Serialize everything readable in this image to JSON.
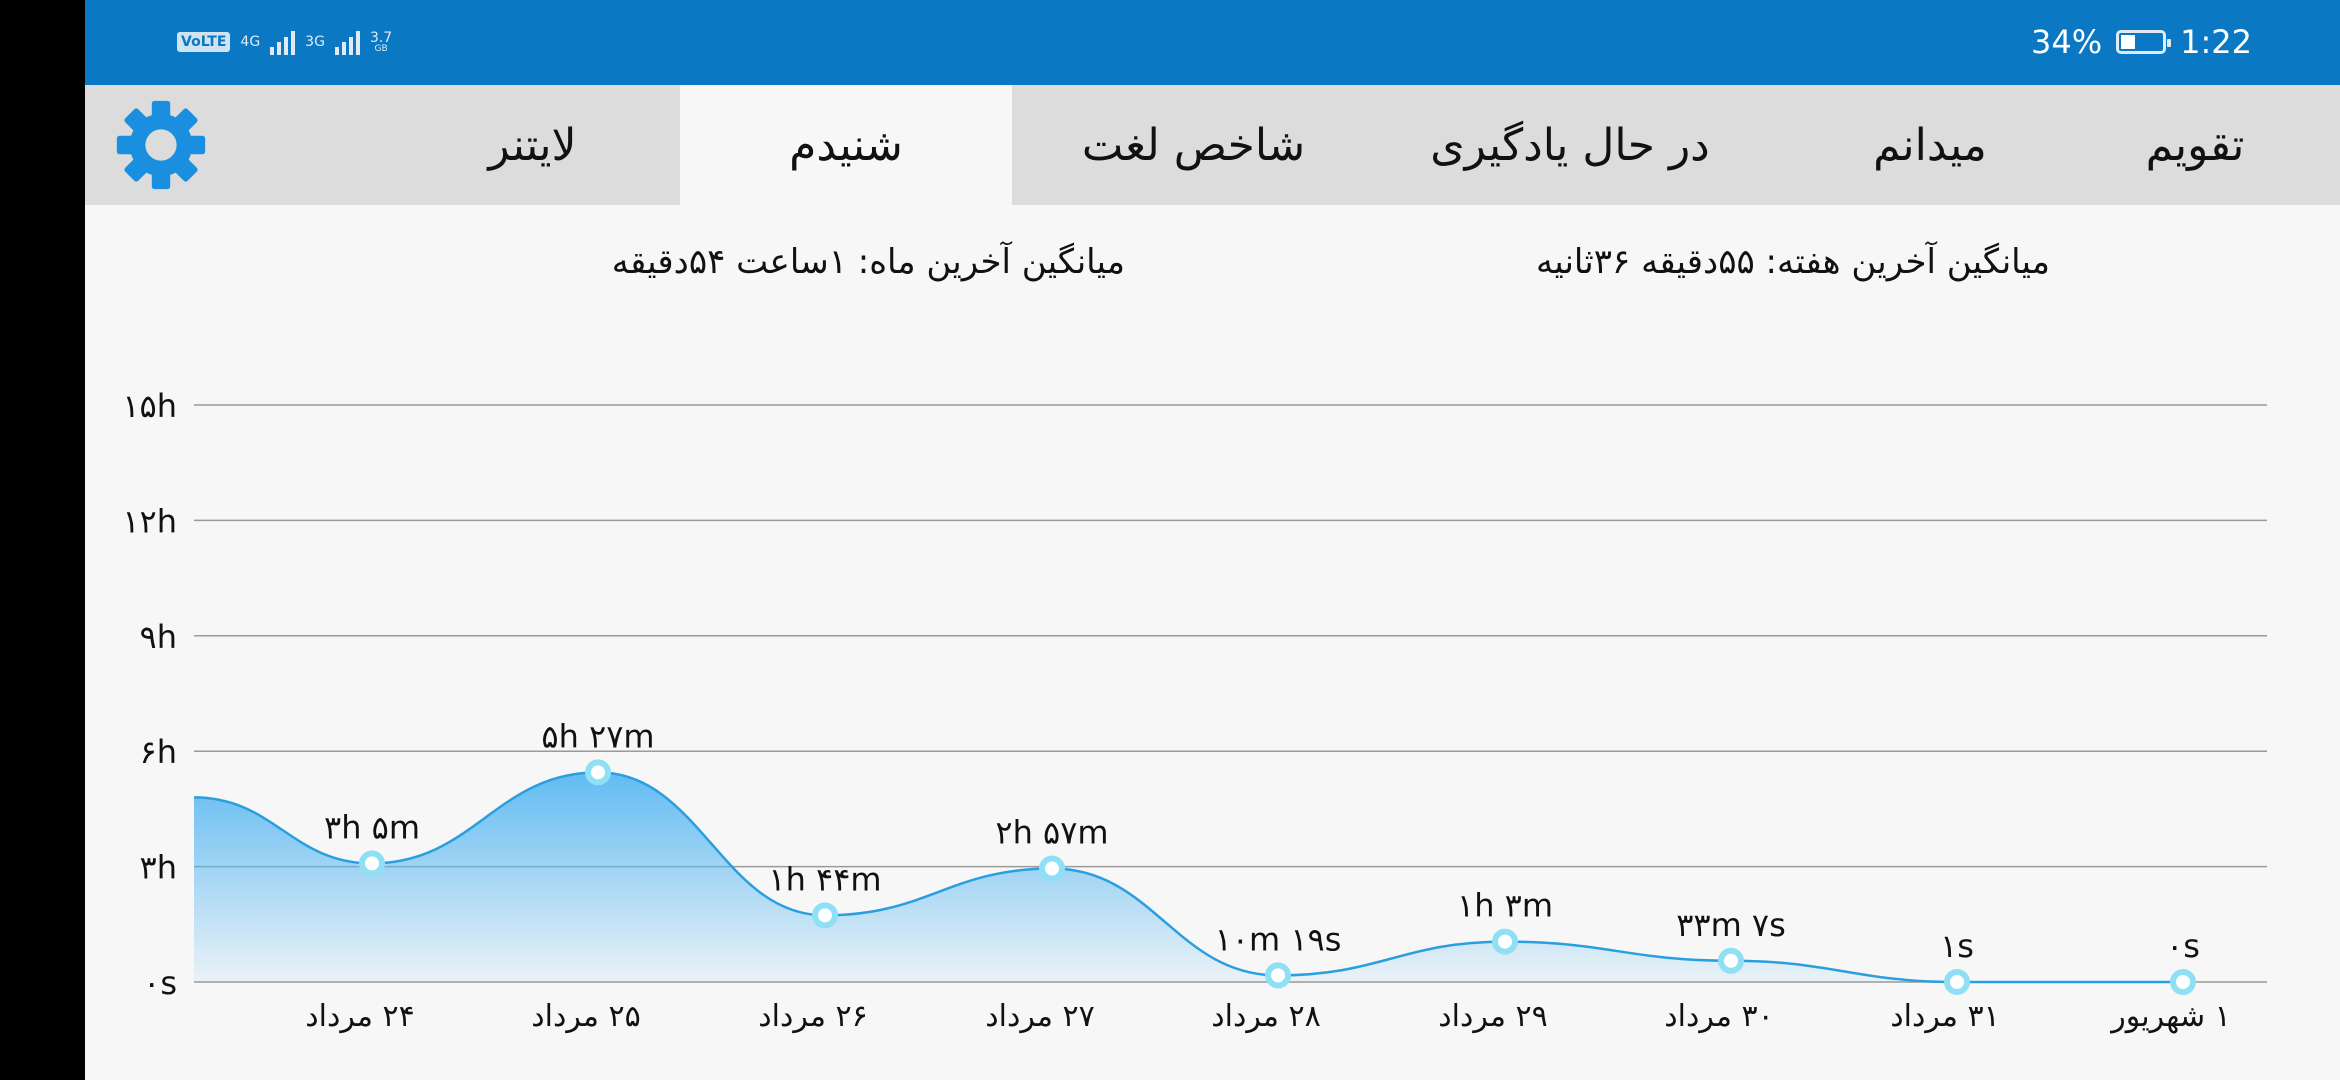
{
  "status_bar": {
    "network_badge": "VoLTE",
    "sim1_network": "4G",
    "sim2_network": "3G",
    "speed_value": "3.7",
    "speed_unit": "GB",
    "battery_percent": "34%",
    "battery_level": 0.34,
    "time": "1:22"
  },
  "tabs": [
    {
      "label": "تقویم",
      "active": false
    },
    {
      "label": "میدانم",
      "active": false
    },
    {
      "label": "در حال یادگیری",
      "active": false
    },
    {
      "label": "شاخص لغت",
      "active": false
    },
    {
      "label": "شنیدم",
      "active": true
    },
    {
      "label": "لایتنر",
      "active": false
    }
  ],
  "settings_icon": "gear-icon",
  "accent_color": "#0a78c2",
  "summary": {
    "week": "میانگین آخرین هفته: ۵۵دقیقه  ۳۶ثانیه",
    "month": "میانگین آخرین ماه: ۱ساعت  ۵۴دقیقه"
  },
  "chart_data": {
    "type": "area",
    "y_ticks": [
      "۰s",
      "۳h",
      "۶h",
      "۹h",
      "۱۲h",
      "۱۵h"
    ],
    "ylim": [
      0,
      15
    ],
    "grid": true,
    "categories": [
      "۲۴ مرداد",
      "۲۵ مرداد",
      "۲۶ مرداد",
      "۲۷ مرداد",
      "۲۸ مرداد",
      "۲۹ مرداد",
      "۳۰ مرداد",
      "۳۱ مرداد",
      "۱ شهریور"
    ],
    "values_hours": [
      3.083,
      5.45,
      1.733,
      2.95,
      0.172,
      1.05,
      0.552,
      0.0003,
      0
    ],
    "data_labels": [
      "۳h ۵m",
      "۵h ۲۷m",
      "۱h ۴۴m",
      "۲h ۵۷m",
      "۱۰m ۱۹s",
      "۱h ۳m",
      "۳۳m ۷s",
      "۱s",
      "۰s"
    ],
    "leading_value_hours": 4.8,
    "line_color": "#2a9fe0",
    "fill_color": "#5ab8f2",
    "marker_color": "#8fe0f5"
  }
}
